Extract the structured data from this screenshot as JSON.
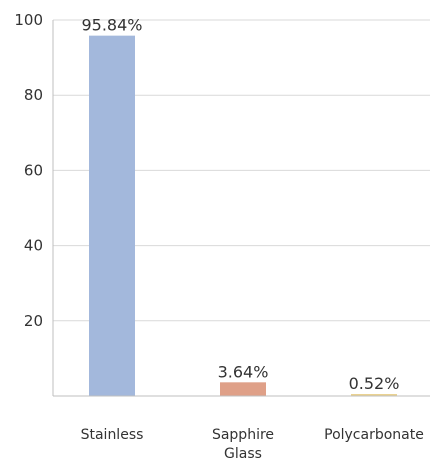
{
  "chart_data": {
    "type": "bar",
    "title": "",
    "xlabel": "",
    "ylabel": "",
    "categories": [
      "Stainless",
      "Sapphire Glass",
      "Polycarbonate"
    ],
    "category_lines": [
      [
        "Stainless"
      ],
      [
        "Sapphire",
        "Glass"
      ],
      [
        "Polycarbonate"
      ]
    ],
    "values": [
      95.84,
      3.64,
      0.52
    ],
    "data_labels": [
      "95.84%",
      "3.64%",
      "0.52%"
    ],
    "yticks": [
      20,
      40,
      60,
      80,
      100
    ],
    "ylim": [
      0,
      100
    ],
    "grid": true,
    "colors": [
      "#a3b8dc",
      "#dfa088",
      "#ead08e"
    ]
  }
}
